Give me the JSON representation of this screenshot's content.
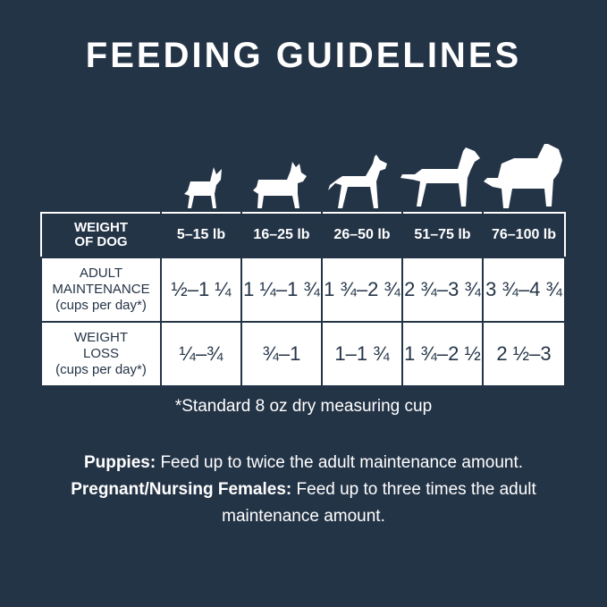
{
  "title": "FEEDING GUIDELINES",
  "colors": {
    "background": "#243447",
    "table_cell": "#ffffff"
  },
  "dog_icons": [
    "toy-dog-icon",
    "terrier-icon",
    "boxer-icon",
    "retriever-icon",
    "large-dog-icon"
  ],
  "table": {
    "header_label": [
      "WEIGHT",
      "OF DOG"
    ],
    "columns": [
      "5–15 lb",
      "16–25 lb",
      "26–50 lb",
      "51–75 lb",
      "76–100 lb"
    ],
    "rows": [
      {
        "label": [
          "ADULT",
          "MAINTENANCE"
        ],
        "sub": "(cups per day*)",
        "values": [
          "½–1 ¼",
          "1 ¼–1 ¾",
          "1 ¾–2 ¾",
          "2 ¾–3 ¾",
          "3 ¾–4 ¾"
        ]
      },
      {
        "label": [
          "WEIGHT",
          "LOSS"
        ],
        "sub": "(cups per day*)",
        "values": [
          "¼–¾",
          "¾–1",
          "1–1 ¾",
          "1 ¾–2 ½",
          "2 ½–3"
        ]
      }
    ]
  },
  "footnote": "*Standard 8 oz dry measuring cup",
  "notes": [
    {
      "bold": "Puppies:",
      "text": " Feed up to twice the adult maintenance amount."
    },
    {
      "bold": "Pregnant/Nursing Females:",
      "text": " Feed up to three times the adult maintenance amount."
    }
  ]
}
